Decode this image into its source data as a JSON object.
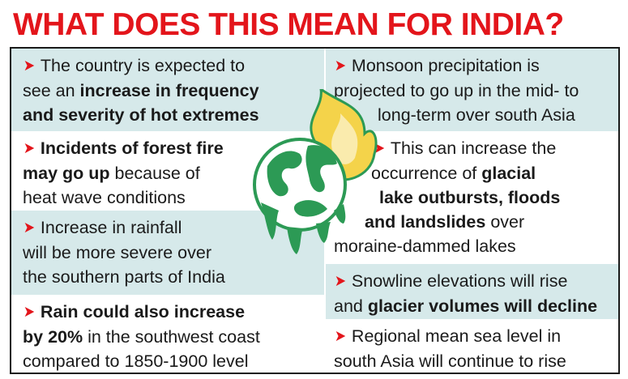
{
  "title": "WHAT DOES THIS MEAN FOR INDIA?",
  "colors": {
    "accent": "#e3151b",
    "shade": "#d6e9ea",
    "globe_green": "#2c9a55",
    "flame_yellow": "#f4d34a"
  },
  "left": [
    {
      "lines": [
        [
          {
            "t": "The country is expected to",
            "b": false
          }
        ],
        [
          {
            "t": "see an ",
            "b": false
          },
          {
            "t": "increase in frequency",
            "b": true
          }
        ],
        [
          {
            "t": "and severity of hot extremes",
            "b": true
          }
        ]
      ]
    },
    {
      "lines": [
        [
          {
            "t": "Incidents of forest fire",
            "b": true
          }
        ],
        [
          {
            "t": "may go up",
            "b": true
          },
          {
            "t": " because of",
            "b": false
          }
        ],
        [
          {
            "t": "heat wave conditions",
            "b": false
          }
        ]
      ]
    },
    {
      "lines": [
        [
          {
            "t": "Increase in rainfall",
            "b": false
          }
        ],
        [
          {
            "t": "will be more severe over",
            "b": false
          }
        ],
        [
          {
            "t": "the southern parts of India",
            "b": false
          }
        ]
      ]
    },
    {
      "lines": [
        [
          {
            "t": "Rain could also increase",
            "b": true
          }
        ],
        [
          {
            "t": "by 20%",
            "b": true
          },
          {
            "t": " in the southwest coast",
            "b": false
          }
        ],
        [
          {
            "t": "compared to 1850-1900 level",
            "b": false
          }
        ]
      ]
    }
  ],
  "right": [
    {
      "lines": [
        [
          {
            "t": "Monsoon precipitation is",
            "b": false
          }
        ],
        [
          {
            "t": "projected to go up in the mid- to",
            "b": false
          }
        ],
        [
          {
            "t": "long-term over south Asia",
            "b": false
          }
        ]
      ]
    },
    {
      "lines": [
        [
          {
            "t": "This can increase the",
            "b": false
          }
        ],
        [
          {
            "t": "occurrence of ",
            "b": false
          },
          {
            "t": "glacial",
            "b": true
          }
        ],
        [
          {
            "t": "lake outbursts, floods",
            "b": true
          }
        ],
        [
          {
            "t": "and landslides",
            "b": true
          },
          {
            "t": " over",
            "b": false
          }
        ],
        [
          {
            "t": "moraine-dammed lakes",
            "b": false
          }
        ]
      ]
    },
    {
      "lines": [
        [
          {
            "t": "Snowline elevations will rise",
            "b": false
          }
        ],
        [
          {
            "t": "and ",
            "b": false
          },
          {
            "t": "glacier volumes will decline",
            "b": true
          }
        ]
      ]
    },
    {
      "lines": [
        [
          {
            "t": "Regional mean sea level in",
            "b": false
          }
        ],
        [
          {
            "t": "south Asia will continue to rise",
            "b": false
          }
        ]
      ]
    }
  ]
}
